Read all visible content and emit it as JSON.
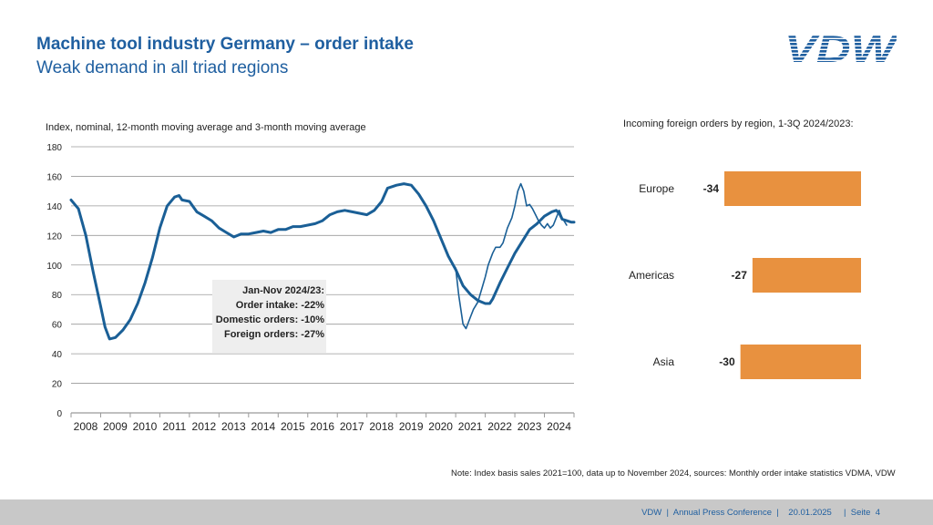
{
  "header": {
    "title": "Machine tool industry Germany – order intake",
    "subtitle": "Weak demand in all triad regions",
    "logo_text": "VDW"
  },
  "colors": {
    "line": "#1a5f96",
    "bar": "#e8913f",
    "title": "#1f5fa0",
    "grid": "#9a9a9a",
    "annotation_bg": "#eeeeee"
  },
  "chart_data": [
    {
      "type": "line",
      "caption": "Index, nominal, 12-month moving average and 3-month moving average",
      "x_ticks": [
        "2008",
        "2009",
        "2010",
        "2011",
        "2012",
        "2013",
        "2014",
        "2015",
        "2016",
        "2017",
        "2018",
        "2019",
        "2020",
        "2021",
        "2022",
        "2023",
        "2024"
      ],
      "y_ticks": [
        "0",
        "20",
        "40",
        "60",
        "80",
        "100",
        "120",
        "140",
        "160",
        "180"
      ],
      "ylim": [
        0,
        180
      ],
      "xlim": [
        2008,
        2025.0
      ],
      "grid": true,
      "series": [
        {
          "name": "12-month moving average",
          "points": [
            [
              2008.0,
              144
            ],
            [
              2008.25,
              138
            ],
            [
              2008.5,
              120
            ],
            [
              2008.75,
              95
            ],
            [
              2009.0,
              72
            ],
            [
              2009.15,
              58
            ],
            [
              2009.3,
              50
            ],
            [
              2009.5,
              51
            ],
            [
              2009.75,
              56
            ],
            [
              2010.0,
              63
            ],
            [
              2010.25,
              74
            ],
            [
              2010.5,
              88
            ],
            [
              2010.75,
              105
            ],
            [
              2011.0,
              125
            ],
            [
              2011.25,
              140
            ],
            [
              2011.5,
              146
            ],
            [
              2011.65,
              147
            ],
            [
              2011.75,
              144
            ],
            [
              2012.0,
              143
            ],
            [
              2012.25,
              136
            ],
            [
              2012.5,
              133
            ],
            [
              2012.75,
              130
            ],
            [
              2013.0,
              125
            ],
            [
              2013.25,
              122
            ],
            [
              2013.5,
              119
            ],
            [
              2013.75,
              121
            ],
            [
              2014.0,
              121
            ],
            [
              2014.25,
              122
            ],
            [
              2014.5,
              123
            ],
            [
              2014.75,
              122
            ],
            [
              2015.0,
              124
            ],
            [
              2015.25,
              124
            ],
            [
              2015.5,
              126
            ],
            [
              2015.75,
              126
            ],
            [
              2016.0,
              127
            ],
            [
              2016.25,
              128
            ],
            [
              2016.5,
              130
            ],
            [
              2016.75,
              134
            ],
            [
              2017.0,
              136
            ],
            [
              2017.25,
              137
            ],
            [
              2017.5,
              136
            ],
            [
              2017.75,
              135
            ],
            [
              2018.0,
              134
            ],
            [
              2018.25,
              137
            ],
            [
              2018.5,
              143
            ],
            [
              2018.7,
              152
            ],
            [
              2019.0,
              154
            ],
            [
              2019.25,
              155
            ],
            [
              2019.5,
              154
            ],
            [
              2019.75,
              148
            ],
            [
              2020.0,
              140
            ],
            [
              2020.25,
              130
            ],
            [
              2020.5,
              118
            ],
            [
              2020.75,
              106
            ],
            [
              2021.0,
              97
            ],
            [
              2021.25,
              86
            ],
            [
              2021.5,
              80
            ],
            [
              2021.75,
              76
            ],
            [
              2022.0,
              74
            ],
            [
              2022.15,
              74
            ],
            [
              2022.25,
              77
            ],
            [
              2022.5,
              88
            ],
            [
              2022.75,
              98
            ],
            [
              2023.0,
              108
            ],
            [
              2023.25,
              116
            ],
            [
              2023.5,
              124
            ],
            [
              2023.75,
              128
            ],
            [
              2024.0,
              133
            ],
            [
              2024.25,
              136
            ],
            [
              2024.4,
              137
            ],
            [
              2024.5,
              135
            ],
            [
              2024.6,
              131
            ],
            [
              2024.75,
              130
            ],
            [
              2024.9,
              129
            ],
            [
              2025.0,
              129
            ]
          ]
        },
        {
          "name": "3-month moving average",
          "points": [
            [
              2021.0,
              98
            ],
            [
              2021.1,
              80
            ],
            [
              2021.25,
              60
            ],
            [
              2021.35,
              57
            ],
            [
              2021.5,
              65
            ],
            [
              2021.6,
              70
            ],
            [
              2021.75,
              75
            ],
            [
              2021.9,
              85
            ],
            [
              2022.0,
              92
            ],
            [
              2022.1,
              100
            ],
            [
              2022.25,
              108
            ],
            [
              2022.35,
              112
            ],
            [
              2022.5,
              112
            ],
            [
              2022.6,
              115
            ],
            [
              2022.75,
              125
            ],
            [
              2022.9,
              132
            ],
            [
              2023.0,
              140
            ],
            [
              2023.1,
              150
            ],
            [
              2023.2,
              155
            ],
            [
              2023.3,
              150
            ],
            [
              2023.4,
              140
            ],
            [
              2023.5,
              141
            ],
            [
              2023.6,
              138
            ],
            [
              2023.7,
              134
            ],
            [
              2023.8,
              130
            ],
            [
              2023.9,
              127
            ],
            [
              2024.0,
              125
            ],
            [
              2024.1,
              128
            ],
            [
              2024.2,
              125
            ],
            [
              2024.3,
              127
            ],
            [
              2024.4,
              132
            ],
            [
              2024.5,
              137
            ],
            [
              2024.6,
              132
            ],
            [
              2024.75,
              127
            ]
          ]
        }
      ],
      "annotation": {
        "lines": [
          "Jan-Nov 2024/23:",
          "Order intake: -22%",
          "Domestic orders: -10%",
          "Foreign orders: -27%"
        ]
      }
    },
    {
      "type": "bar",
      "caption": "Incoming foreign orders by region, 1-3Q 2024/2023:",
      "categories": [
        "Europe",
        "Americas",
        "Asia"
      ],
      "values": [
        -34,
        -27,
        -30
      ],
      "value_labels": [
        "-34",
        "-27",
        "-30"
      ],
      "orientation": "horizontal"
    }
  ],
  "footer": {
    "text": "VDW  |  Annual Press Conference  |    20.01.2025     |  Seite  4"
  },
  "note": "Note: Index basis sales 2021=100, data up to November 2024, sources: Monthly order intake statistics VDMA, VDW"
}
